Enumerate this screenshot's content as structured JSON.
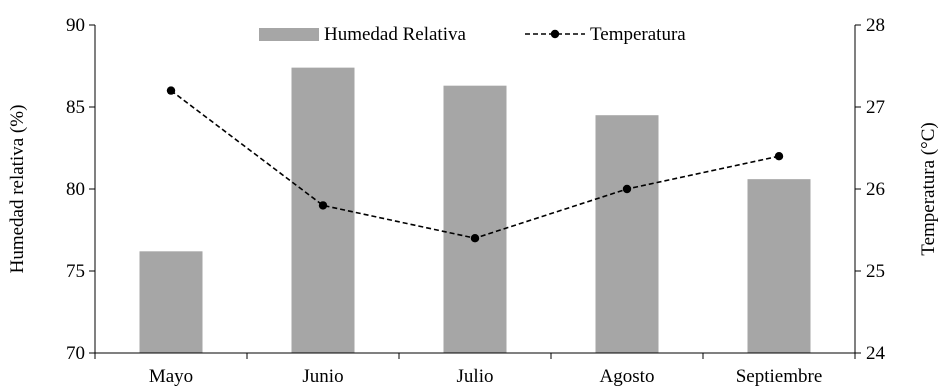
{
  "chart_data": {
    "type": "bar",
    "categories": [
      "Mayo",
      "Junio",
      "Julio",
      "Agosto",
      "Septiembre"
    ],
    "series": [
      {
        "name": "Humedad Relativa",
        "type": "bar",
        "axis": "left",
        "color": "#a6a6a6",
        "values": [
          76.2,
          87.4,
          86.3,
          84.5,
          80.6
        ]
      },
      {
        "name": "Temperatura",
        "type": "line",
        "axis": "right",
        "color": "#000000",
        "line_style": "dashed",
        "marker": "circle",
        "values": [
          27.2,
          25.8,
          25.4,
          26.0,
          26.4
        ]
      }
    ],
    "ylabel": "Humedad relativa (%)",
    "ylabel_right": "Temperatura (°C)",
    "ylim": [
      70,
      90
    ],
    "ylim_right": [
      24,
      28
    ],
    "yticks": [
      "70",
      "75",
      "80",
      "85",
      "90"
    ],
    "yticks_right": [
      "24",
      "25",
      "26",
      "27",
      "28"
    ],
    "grid": false,
    "legend_position": "top-center"
  }
}
